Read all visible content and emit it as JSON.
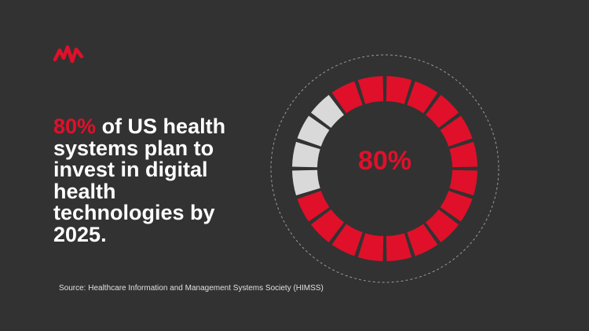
{
  "headline": {
    "text": "of US health systems plan to invest in digital health technologies by 2025."
  },
  "source": "Source: Healthcare Information and Management Systems Society (HIMSS)",
  "chart_data": {
    "type": "donut",
    "value": 80,
    "max": 100,
    "value_label": "80%",
    "segments": 20,
    "color": "#e0102a",
    "rest_color": "#d9d9d9"
  }
}
